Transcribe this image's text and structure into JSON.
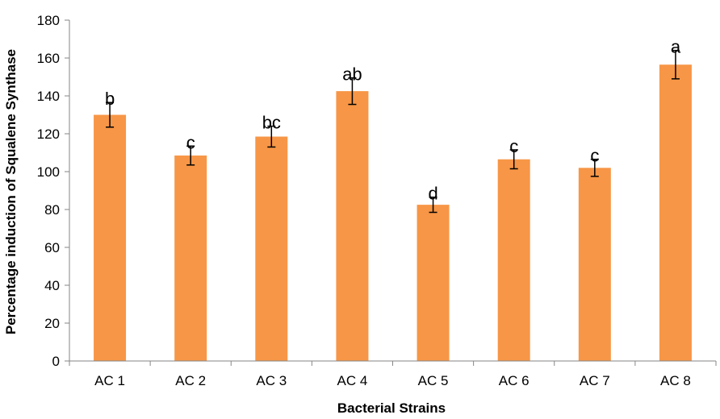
{
  "chart_data": {
    "type": "bar",
    "title": "",
    "xlabel": "Bacterial Strains",
    "ylabel": "Percentage induction of Squalene Synthase",
    "ylim": [
      0,
      180
    ],
    "yticks": [
      0,
      20,
      40,
      60,
      80,
      100,
      120,
      140,
      160,
      180
    ],
    "categories": [
      "AC 1",
      "AC 2",
      "AC 3",
      "AC 4",
      "AC 5",
      "AC 6",
      "AC 7",
      "AC 8"
    ],
    "values": [
      130,
      108.5,
      118.5,
      142.5,
      82.5,
      106.5,
      102,
      156.5
    ],
    "error": [
      6.5,
      5,
      5.5,
      7,
      4,
      5,
      4.5,
      7.5
    ],
    "significance": [
      "b",
      "c",
      "bc",
      "ab",
      "d",
      "c",
      "c",
      "a"
    ],
    "bar_color": "#F79646",
    "grid": false,
    "legend": "none"
  }
}
